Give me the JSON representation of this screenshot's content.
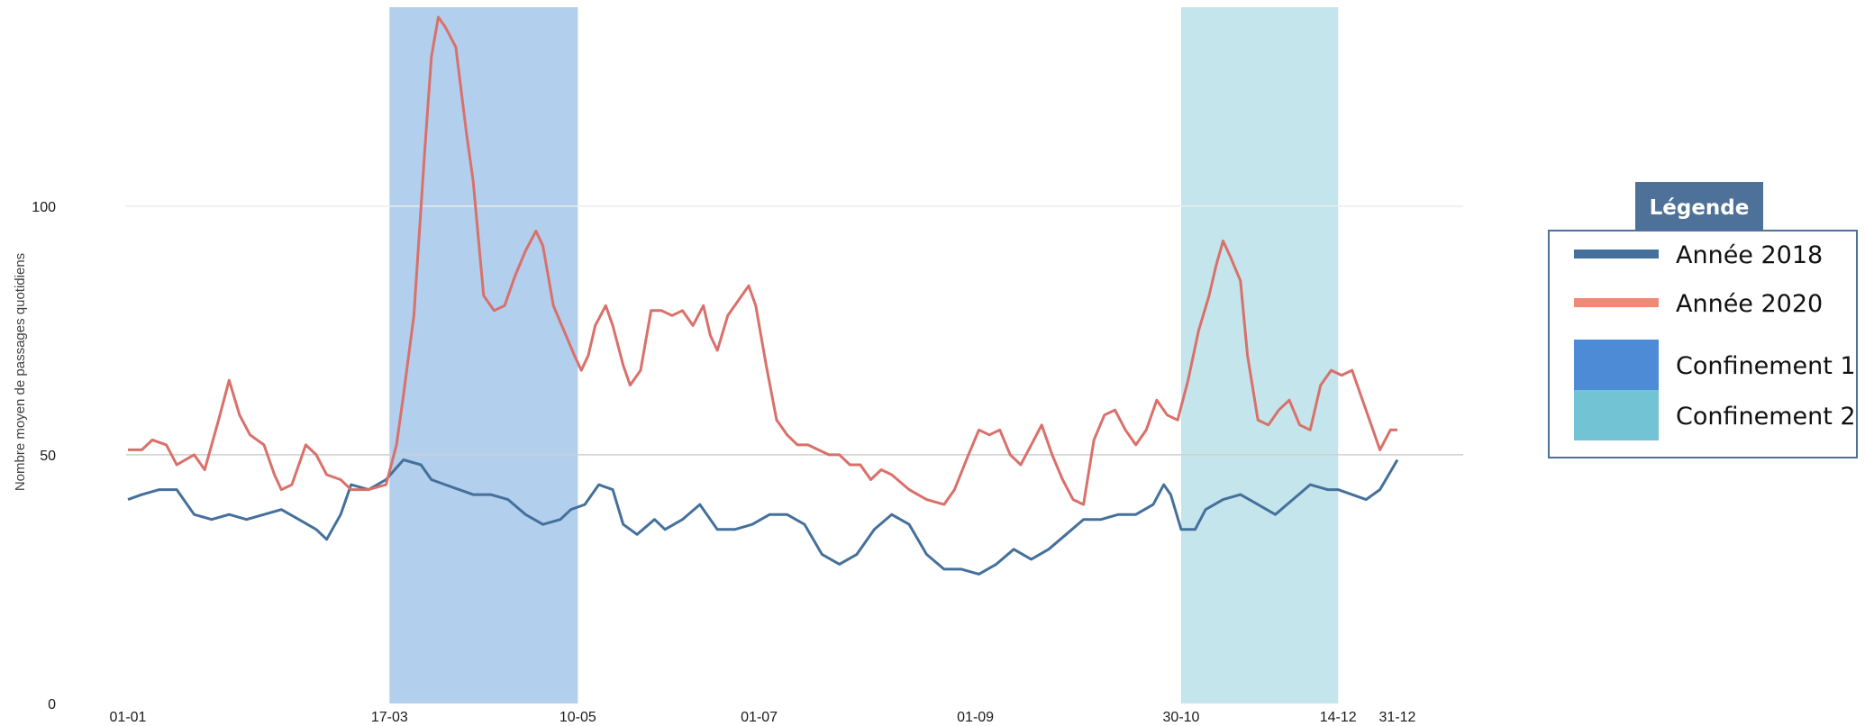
{
  "chart_data": {
    "type": "line",
    "xlabel": "",
    "ylabel": "Nombre moyen de passages quotidiens",
    "ylim": [
      0,
      140
    ],
    "xlim": [
      1,
      365
    ],
    "yticks": [
      0,
      50,
      100
    ],
    "grid": "horizontal, light",
    "xticks": [
      {
        "day": 1,
        "label": "01-01"
      },
      {
        "day": 76,
        "label": "17-03"
      },
      {
        "day": 130,
        "label": "10-05"
      },
      {
        "day": 182,
        "label": "01-07"
      },
      {
        "day": 244,
        "label": "01-09"
      },
      {
        "day": 303,
        "label": "30-10"
      },
      {
        "day": 348,
        "label": "14-12"
      },
      {
        "day": 365,
        "label": "31-12"
      }
    ],
    "shaded_periods": [
      {
        "name": "Confinement 1",
        "start_day": 76,
        "end_day": 130,
        "color": "#b3cfee"
      },
      {
        "name": "Confinement 2",
        "start_day": 303,
        "end_day": 348,
        "color": "#c4e5ec"
      }
    ],
    "series": [
      {
        "name": "Année 2018",
        "color": "#44709b",
        "points": [
          [
            1,
            41
          ],
          [
            5,
            42
          ],
          [
            10,
            43
          ],
          [
            15,
            43
          ],
          [
            20,
            38
          ],
          [
            25,
            37
          ],
          [
            30,
            38
          ],
          [
            35,
            37
          ],
          [
            40,
            38
          ],
          [
            45,
            39
          ],
          [
            50,
            37
          ],
          [
            55,
            35
          ],
          [
            58,
            33
          ],
          [
            62,
            38
          ],
          [
            65,
            44
          ],
          [
            70,
            43
          ],
          [
            75,
            45
          ],
          [
            80,
            49
          ],
          [
            85,
            48
          ],
          [
            88,
            45
          ],
          [
            92,
            44
          ],
          [
            96,
            43
          ],
          [
            100,
            42
          ],
          [
            105,
            42
          ],
          [
            110,
            41
          ],
          [
            115,
            38
          ],
          [
            120,
            36
          ],
          [
            125,
            37
          ],
          [
            128,
            39
          ],
          [
            132,
            40
          ],
          [
            136,
            44
          ],
          [
            140,
            43
          ],
          [
            143,
            36
          ],
          [
            147,
            34
          ],
          [
            152,
            37
          ],
          [
            155,
            35
          ],
          [
            160,
            37
          ],
          [
            165,
            40
          ],
          [
            170,
            35
          ],
          [
            175,
            35
          ],
          [
            180,
            36
          ],
          [
            185,
            38
          ],
          [
            190,
            38
          ],
          [
            195,
            36
          ],
          [
            200,
            30
          ],
          [
            205,
            28
          ],
          [
            210,
            30
          ],
          [
            215,
            35
          ],
          [
            220,
            38
          ],
          [
            225,
            36
          ],
          [
            230,
            30
          ],
          [
            235,
            27
          ],
          [
            240,
            27
          ],
          [
            245,
            26
          ],
          [
            250,
            28
          ],
          [
            255,
            31
          ],
          [
            260,
            29
          ],
          [
            265,
            31
          ],
          [
            270,
            34
          ],
          [
            275,
            37
          ],
          [
            280,
            37
          ],
          [
            285,
            38
          ],
          [
            290,
            38
          ],
          [
            295,
            40
          ],
          [
            298,
            44
          ],
          [
            300,
            42
          ],
          [
            303,
            35
          ],
          [
            307,
            35
          ],
          [
            310,
            39
          ],
          [
            315,
            41
          ],
          [
            320,
            42
          ],
          [
            325,
            40
          ],
          [
            330,
            38
          ],
          [
            335,
            41
          ],
          [
            340,
            44
          ],
          [
            345,
            43
          ],
          [
            348,
            43
          ],
          [
            352,
            42
          ],
          [
            356,
            41
          ],
          [
            360,
            43
          ],
          [
            365,
            49
          ]
        ]
      },
      {
        "name": "Année 2020",
        "color": "#d9706a",
        "points": [
          [
            1,
            51
          ],
          [
            5,
            51
          ],
          [
            8,
            53
          ],
          [
            12,
            52
          ],
          [
            15,
            48
          ],
          [
            20,
            50
          ],
          [
            23,
            47
          ],
          [
            27,
            57
          ],
          [
            30,
            65
          ],
          [
            33,
            58
          ],
          [
            36,
            54
          ],
          [
            40,
            52
          ],
          [
            43,
            46
          ],
          [
            45,
            43
          ],
          [
            48,
            44
          ],
          [
            52,
            52
          ],
          [
            55,
            50
          ],
          [
            58,
            46
          ],
          [
            62,
            45
          ],
          [
            65,
            43
          ],
          [
            70,
            43
          ],
          [
            75,
            44
          ],
          [
            78,
            52
          ],
          [
            80,
            62
          ],
          [
            83,
            78
          ],
          [
            86,
            110
          ],
          [
            88,
            130
          ],
          [
            90,
            138
          ],
          [
            92,
            136
          ],
          [
            95,
            132
          ],
          [
            98,
            115
          ],
          [
            100,
            105
          ],
          [
            103,
            82
          ],
          [
            106,
            79
          ],
          [
            109,
            80
          ],
          [
            112,
            86
          ],
          [
            115,
            91
          ],
          [
            118,
            95
          ],
          [
            120,
            92
          ],
          [
            123,
            80
          ],
          [
            126,
            75
          ],
          [
            129,
            70
          ],
          [
            131,
            67
          ],
          [
            133,
            70
          ],
          [
            135,
            76
          ],
          [
            138,
            80
          ],
          [
            140,
            76
          ],
          [
            143,
            68
          ],
          [
            145,
            64
          ],
          [
            148,
            67
          ],
          [
            151,
            79
          ],
          [
            154,
            79
          ],
          [
            157,
            78
          ],
          [
            160,
            79
          ],
          [
            163,
            76
          ],
          [
            166,
            80
          ],
          [
            168,
            74
          ],
          [
            170,
            71
          ],
          [
            173,
            78
          ],
          [
            176,
            81
          ],
          [
            179,
            84
          ],
          [
            181,
            80
          ],
          [
            184,
            68
          ],
          [
            187,
            57
          ],
          [
            190,
            54
          ],
          [
            193,
            52
          ],
          [
            196,
            52
          ],
          [
            199,
            51
          ],
          [
            202,
            50
          ],
          [
            205,
            50
          ],
          [
            208,
            48
          ],
          [
            211,
            48
          ],
          [
            214,
            45
          ],
          [
            217,
            47
          ],
          [
            220,
            46
          ],
          [
            225,
            43
          ],
          [
            230,
            41
          ],
          [
            235,
            40
          ],
          [
            238,
            43
          ],
          [
            242,
            50
          ],
          [
            245,
            55
          ],
          [
            248,
            54
          ],
          [
            251,
            55
          ],
          [
            254,
            50
          ],
          [
            257,
            48
          ],
          [
            260,
            52
          ],
          [
            263,
            56
          ],
          [
            266,
            50
          ],
          [
            269,
            45
          ],
          [
            272,
            41
          ],
          [
            275,
            40
          ],
          [
            278,
            53
          ],
          [
            281,
            58
          ],
          [
            284,
            59
          ],
          [
            287,
            55
          ],
          [
            290,
            52
          ],
          [
            293,
            55
          ],
          [
            296,
            61
          ],
          [
            299,
            58
          ],
          [
            302,
            57
          ],
          [
            305,
            65
          ],
          [
            308,
            75
          ],
          [
            311,
            82
          ],
          [
            313,
            88
          ],
          [
            315,
            93
          ],
          [
            317,
            90
          ],
          [
            320,
            85
          ],
          [
            322,
            70
          ],
          [
            325,
            57
          ],
          [
            328,
            56
          ],
          [
            331,
            59
          ],
          [
            334,
            61
          ],
          [
            337,
            56
          ],
          [
            340,
            55
          ],
          [
            343,
            64
          ],
          [
            346,
            67
          ],
          [
            349,
            66
          ],
          [
            352,
            67
          ],
          [
            355,
            61
          ],
          [
            358,
            55
          ],
          [
            360,
            51
          ],
          [
            363,
            55
          ],
          [
            365,
            55
          ]
        ]
      }
    ]
  },
  "legend": {
    "title": "Légende",
    "items": [
      {
        "label": "Année 2018",
        "kind": "line",
        "color": "#44709b"
      },
      {
        "label": "Année 2020",
        "kind": "line",
        "color": "#f08a77"
      },
      {
        "label": "Confinement 1",
        "kind": "box",
        "color": "#4d8bd6"
      },
      {
        "label": "Confinement 2",
        "kind": "box",
        "color": "#72c3d3"
      }
    ],
    "header_color": "#4d7198",
    "border_color": "#4d7198"
  }
}
